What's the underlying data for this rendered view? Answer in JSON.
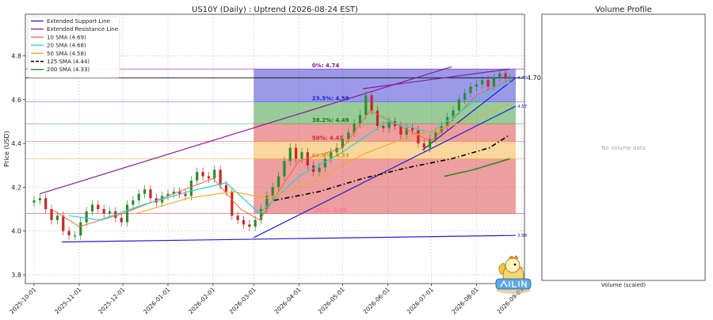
{
  "chart_data": [
    {
      "type": "candlestick",
      "title": "US10Y (Daily) : Uptrend (2026-08-24 EST)",
      "ylabel": "Price (USD)",
      "xlabel": "",
      "ylim": [
        3.76,
        4.99
      ],
      "xlim": [
        "2025-09-25",
        "2026-09-03"
      ],
      "grid": true,
      "legend_position": "top-left",
      "y_ticks": [
        "3.8",
        "4.0",
        "4.2",
        "4.4",
        "4.6",
        "4.8"
      ],
      "x_ticks": [
        "2025-10-01",
        "2025-11-01",
        "2025-12-01",
        "2026-01-01",
        "2026-02-01",
        "2026-03-01",
        "2026-04-01",
        "2026-05-01",
        "2026-06-01",
        "2026-07-01",
        "2026-08-01",
        "2026-09-01"
      ],
      "legend": [
        {
          "label": "Extended Support Line",
          "color": "#1f1fcf",
          "style": "solid"
        },
        {
          "label": "Extended Resistance Line",
          "color": "#8b1a9b",
          "style": "solid"
        },
        {
          "label": "10 SMA (4.69)",
          "color": "#f4663f",
          "style": "solid"
        },
        {
          "label": "20 SMA (4.68)",
          "color": "#22d3d3",
          "style": "solid"
        },
        {
          "label": "50 SMA (4.58)",
          "color": "#f5a623",
          "style": "solid"
        },
        {
          "label": "125 SMA (4.44)",
          "color": "#000000",
          "style": "dashed"
        },
        {
          "label": "200 SMA (4.33)",
          "color": "#1a8c1a",
          "style": "solid"
        }
      ],
      "price_candles": [
        [
          "2025-10-01",
          4.14
        ],
        [
          "2025-10-05",
          4.15
        ],
        [
          "2025-10-09",
          4.1
        ],
        [
          "2025-10-13",
          4.05
        ],
        [
          "2025-10-17",
          4.07
        ],
        [
          "2025-10-21",
          4.0
        ],
        [
          "2025-10-25",
          3.98
        ],
        [
          "2025-10-29",
          3.98
        ],
        [
          "2025-11-02",
          4.04
        ],
        [
          "2025-11-06",
          4.09
        ],
        [
          "2025-11-10",
          4.12
        ],
        [
          "2025-11-14",
          4.1
        ],
        [
          "2025-11-18",
          4.08
        ],
        [
          "2025-11-22",
          4.09
        ],
        [
          "2025-11-26",
          4.06
        ],
        [
          "2025-11-30",
          4.04
        ],
        [
          "2025-12-04",
          4.12
        ],
        [
          "2025-12-08",
          4.14
        ],
        [
          "2025-12-12",
          4.17
        ],
        [
          "2025-12-16",
          4.19
        ],
        [
          "2025-12-20",
          4.15
        ],
        [
          "2025-12-24",
          4.13
        ],
        [
          "2025-12-28",
          4.16
        ],
        [
          "2026-01-01",
          4.17
        ],
        [
          "2026-01-05",
          4.18
        ],
        [
          "2026-01-09",
          4.17
        ],
        [
          "2026-01-13",
          4.16
        ],
        [
          "2026-01-17",
          4.23
        ],
        [
          "2026-01-21",
          4.27
        ],
        [
          "2026-01-25",
          4.25
        ],
        [
          "2026-01-29",
          4.24
        ],
        [
          "2026-02-02",
          4.28
        ],
        [
          "2026-02-06",
          4.21
        ],
        [
          "2026-02-10",
          4.18
        ],
        [
          "2026-02-14",
          4.07
        ],
        [
          "2026-02-18",
          4.05
        ],
        [
          "2026-02-22",
          4.03
        ],
        [
          "2026-02-26",
          4.02
        ],
        [
          "2026-03-02",
          4.05
        ],
        [
          "2026-03-06",
          4.1
        ],
        [
          "2026-03-10",
          4.16
        ],
        [
          "2026-03-14",
          4.2
        ],
        [
          "2026-03-18",
          4.25
        ],
        [
          "2026-03-22",
          4.32
        ],
        [
          "2026-03-26",
          4.38
        ],
        [
          "2026-03-30",
          4.33
        ],
        [
          "2026-04-03",
          4.36
        ],
        [
          "2026-04-07",
          4.3
        ],
        [
          "2026-04-11",
          4.27
        ],
        [
          "2026-04-15",
          4.29
        ],
        [
          "2026-04-19",
          4.33
        ],
        [
          "2026-04-23",
          4.36
        ],
        [
          "2026-04-27",
          4.38
        ],
        [
          "2026-05-01",
          4.42
        ],
        [
          "2026-05-05",
          4.45
        ],
        [
          "2026-05-09",
          4.49
        ],
        [
          "2026-05-13",
          4.53
        ],
        [
          "2026-05-17",
          4.62
        ],
        [
          "2026-05-21",
          4.55
        ],
        [
          "2026-05-25",
          4.48
        ],
        [
          "2026-05-29",
          4.47
        ],
        [
          "2026-06-02",
          4.5
        ],
        [
          "2026-06-06",
          4.48
        ],
        [
          "2026-06-10",
          4.44
        ],
        [
          "2026-06-14",
          4.47
        ],
        [
          "2026-06-18",
          4.46
        ],
        [
          "2026-06-22",
          4.4
        ],
        [
          "2026-06-26",
          4.38
        ],
        [
          "2026-06-30",
          4.42
        ],
        [
          "2026-07-04",
          4.45
        ],
        [
          "2026-07-08",
          4.48
        ],
        [
          "2026-07-12",
          4.52
        ],
        [
          "2026-07-16",
          4.55
        ],
        [
          "2026-07-20",
          4.6
        ],
        [
          "2026-07-24",
          4.63
        ],
        [
          "2026-07-28",
          4.66
        ],
        [
          "2026-08-01",
          4.67
        ],
        [
          "2026-08-05",
          4.69
        ],
        [
          "2026-08-09",
          4.66
        ],
        [
          "2026-08-13",
          4.7
        ],
        [
          "2026-08-17",
          4.72
        ],
        [
          "2026-08-21",
          4.7
        ],
        [
          "2026-08-24",
          4.7
        ]
      ],
      "sma": {
        "10": [
          [
            "2025-10-13",
            4.1
          ],
          [
            "2025-11-01",
            4.02
          ],
          [
            "2025-12-01",
            4.08
          ],
          [
            "2026-01-01",
            4.16
          ],
          [
            "2026-02-01",
            4.24
          ],
          [
            "2026-02-20",
            4.1
          ],
          [
            "2026-03-05",
            4.05
          ],
          [
            "2026-04-01",
            4.32
          ],
          [
            "2026-05-01",
            4.38
          ],
          [
            "2026-05-20",
            4.55
          ],
          [
            "2026-06-15",
            4.46
          ],
          [
            "2026-07-01",
            4.41
          ],
          [
            "2026-08-01",
            4.62
          ],
          [
            "2026-08-24",
            4.69
          ]
        ],
        "20": [
          [
            "2025-10-25",
            4.07
          ],
          [
            "2025-11-15",
            4.05
          ],
          [
            "2025-12-15",
            4.12
          ],
          [
            "2026-01-15",
            4.18
          ],
          [
            "2026-02-10",
            4.22
          ],
          [
            "2026-03-05",
            4.08
          ],
          [
            "2026-04-01",
            4.25
          ],
          [
            "2026-05-01",
            4.36
          ],
          [
            "2026-06-01",
            4.5
          ],
          [
            "2026-07-01",
            4.45
          ],
          [
            "2026-08-01",
            4.6
          ],
          [
            "2026-08-24",
            4.68
          ]
        ],
        "50": [
          [
            "2025-12-10",
            4.08
          ],
          [
            "2026-01-15",
            4.15
          ],
          [
            "2026-02-15",
            4.18
          ],
          [
            "2026-03-10",
            4.15
          ],
          [
            "2026-04-10",
            4.22
          ],
          [
            "2026-05-15",
            4.35
          ],
          [
            "2026-06-15",
            4.43
          ],
          [
            "2026-07-15",
            4.48
          ],
          [
            "2026-08-24",
            4.58
          ]
        ],
        "125": [
          [
            "2026-03-15",
            4.14
          ],
          [
            "2026-04-15",
            4.18
          ],
          [
            "2026-05-15",
            4.24
          ],
          [
            "2026-06-15",
            4.29
          ],
          [
            "2026-07-15",
            4.33
          ],
          [
            "2026-08-10",
            4.38
          ],
          [
            "2026-08-24",
            4.44
          ]
        ],
        "200": [
          [
            "2026-07-10",
            4.25
          ],
          [
            "2026-07-30",
            4.28
          ],
          [
            "2026-08-24",
            4.33
          ]
        ]
      },
      "support_lines": [
        {
          "from": [
            "2025-10-20",
            3.95
          ],
          "to": [
            "2026-08-28",
            3.98
          ],
          "label": "3.98"
        },
        {
          "from": [
            "2026-03-01",
            3.97
          ],
          "to": [
            "2026-08-28",
            4.57
          ],
          "label": "4.57"
        },
        {
          "from": [
            "2026-06-25",
            4.37
          ],
          "to": [
            "2026-08-28",
            4.7
          ],
          "label": "4.70"
        }
      ],
      "resistance_lines": [
        {
          "from": [
            "2025-10-05",
            4.17
          ],
          "to": [
            "2026-07-15",
            4.75
          ]
        },
        {
          "from": [
            "2026-05-15",
            4.65
          ],
          "to": [
            "2026-08-24",
            4.74
          ]
        }
      ],
      "price_line": {
        "value": 4.7,
        "label": "4.70"
      },
      "fibonacci": {
        "start": "2026-03-01",
        "end": "2026-08-28",
        "levels": [
          {
            "label": "0%: 4.74",
            "value": 4.74,
            "fill": "#7b2d8b",
            "line": "#8b1a9b",
            "text": "#7b1a8b"
          },
          {
            "label": "23.5%: 4.59",
            "value": 4.59,
            "fill": "#1f1fcf",
            "line": "#4a4aff",
            "text": "#1f1fcf"
          },
          {
            "label": "38.2%: 4.49",
            "value": 4.49,
            "fill": "#1a8c1a",
            "line": "#2ca02c",
            "text": "#1a7a1a"
          },
          {
            "label": "50%: 4.41",
            "value": 4.41,
            "fill": "#d62728",
            "line": "#e55050",
            "text": "#d62728"
          },
          {
            "label": "61.8%: 4.33",
            "value": 4.33,
            "fill": "#f5a623",
            "line": "#f5a623",
            "text": "#e0901a"
          },
          {
            "label": "100%: 4.08",
            "value": 4.08,
            "fill": "#d62728",
            "line": "#d62728",
            "text": "#ff77aa"
          }
        ]
      }
    },
    {
      "type": "bar",
      "title": "Volume Profile",
      "xlabel": "Volume (scaled)",
      "ylabel": "",
      "message": "No volume data",
      "values": []
    }
  ]
}
